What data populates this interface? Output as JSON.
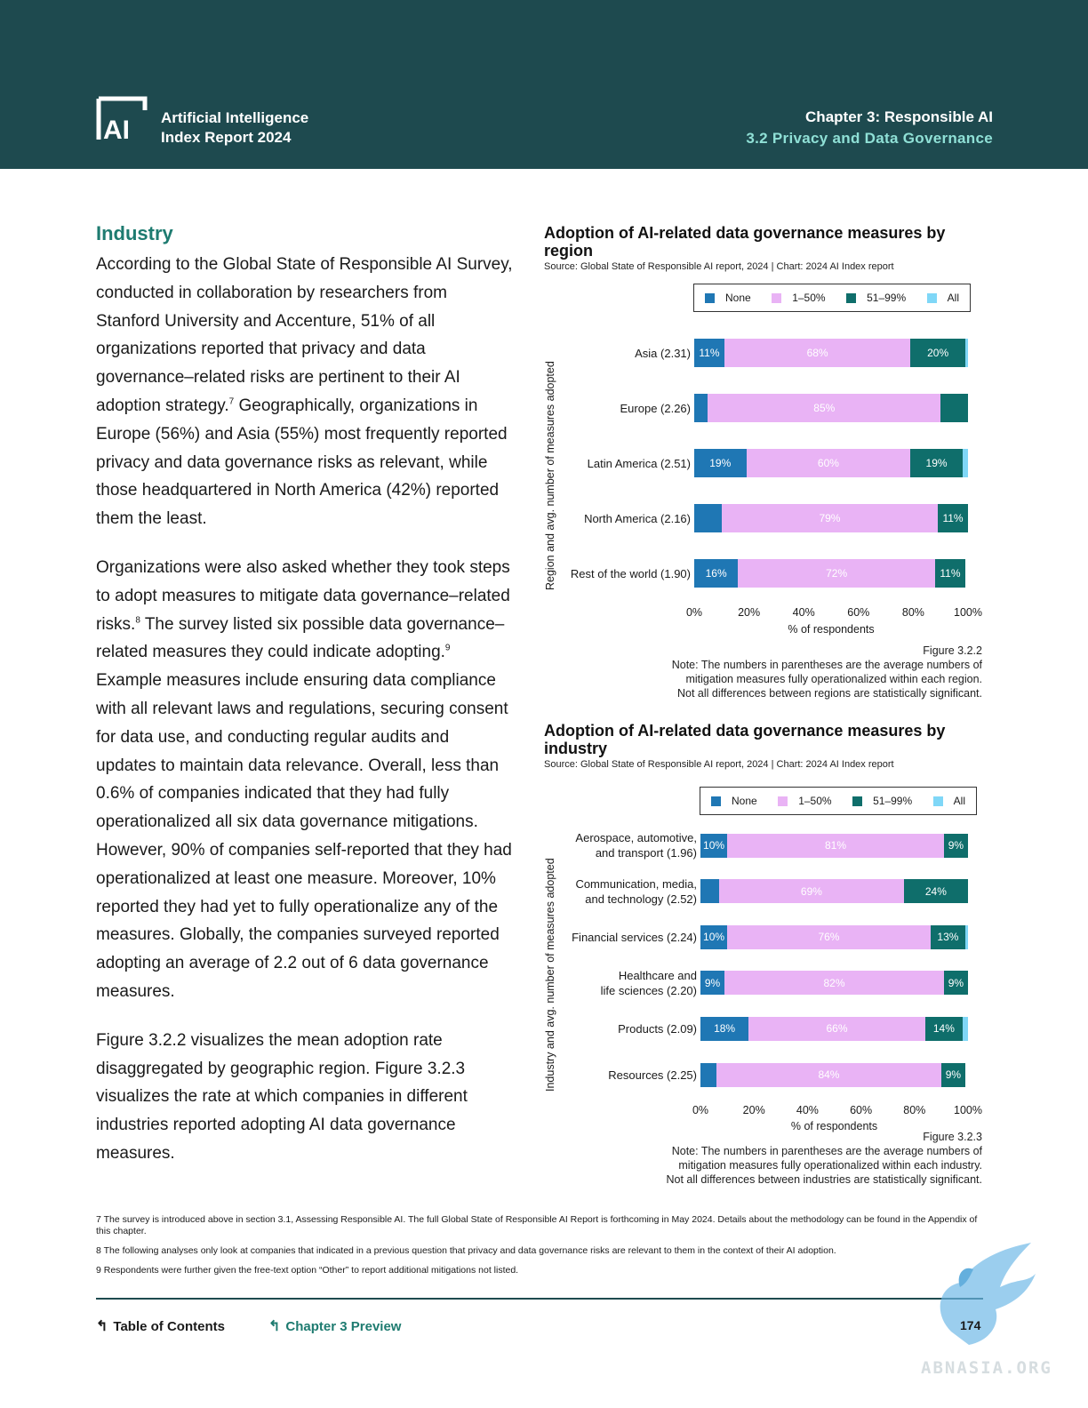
{
  "header": {
    "report_title_line1": "Artificial Intelligence",
    "report_title_line2": "Index Report 2024",
    "chapter_title": "Chapter 3: Responsible AI",
    "section_title": "3.2 Privacy and Data Governance"
  },
  "body": {
    "heading": "Industry",
    "para1_a": "According to the Global State of Responsible AI Survey, conducted in collaboration by researchers from Stanford University and Accenture, 51% of all organizations reported that privacy and data governance–related risks are pertinent to their AI adoption strategy.",
    "para1_sup": "7",
    "para1_b": " Geographically, organizations in Europe (56%) and Asia (55%) most frequently reported privacy and data governance risks as relevant, while those headquartered in North America (42%) reported them the least.",
    "para2_a": "Organizations were also asked whether they took steps to adopt measures to mitigate data governance–related risks.",
    "para2_sup1": "8",
    "para2_b": " The survey listed six possible data governance–related measures they could indicate adopting.",
    "para2_sup2": "9",
    "para2_c": " Example measures include ensuring data compliance with all relevant laws and regulations, securing consent for data use, and conducting regular audits and updates to maintain data relevance. Overall, less than 0.6% of companies indicated that they had fully operationalized all six data governance mitigations. However, 90% of companies self-reported that they had operationalized at least one measure. Moreover, 10% reported they had yet to fully operationalize any of the measures. Globally, the companies surveyed reported adopting an average of 2.2 out of 6 data governance measures.",
    "para3": "Figure 3.2.2 visualizes the mean adoption rate disaggregated by geographic region. Figure 3.2.3 visualizes the rate at which companies in different industries reported adopting AI data governance measures."
  },
  "legend": {
    "items": [
      {
        "label": "None",
        "color": "#1f77b4"
      },
      {
        "label": "1–50%",
        "color": "#e9b3f5"
      },
      {
        "label": "51–99%",
        "color": "#0f6e6b"
      },
      {
        "label": "All",
        "color": "#7fd7f7"
      }
    ]
  },
  "chart_data": [
    {
      "type": "bar",
      "orientation": "horizontal",
      "stacked": true,
      "title": "Adoption of AI-related data governance measures by region",
      "source": "Source: Global State of Responsible AI report, 2024 | Chart: 2024 AI Index report",
      "ylabel": "Region and avg. number of measures adopted",
      "xlabel": "% of respondents",
      "xlim": [
        0,
        100
      ],
      "xticks": [
        "0%",
        "20%",
        "40%",
        "60%",
        "80%",
        "100%"
      ],
      "categories": [
        "Asia (2.31)",
        "Europe (2.26)",
        "Latin America (2.51)",
        "North America (2.16)",
        "Rest of the world (1.90)"
      ],
      "series": [
        {
          "name": "None",
          "values": [
            11,
            5,
            19,
            10,
            16
          ],
          "labels": [
            "11%",
            "",
            "19%",
            "",
            "16%"
          ]
        },
        {
          "name": "1–50%",
          "values": [
            68,
            85,
            60,
            79,
            72
          ],
          "labels": [
            "68%",
            "85%",
            "60%",
            "79%",
            "72%"
          ]
        },
        {
          "name": "51–99%",
          "values": [
            20,
            10,
            19,
            11,
            11
          ],
          "labels": [
            "20%",
            "",
            "19%",
            "11%",
            "11%"
          ]
        },
        {
          "name": "All",
          "values": [
            1,
            0,
            2,
            0,
            0
          ],
          "labels": [
            "",
            "",
            "",
            "",
            ""
          ]
        }
      ],
      "figure": "Figure 3.2.2",
      "note_lines": [
        "Note: The numbers in parentheses are the average numbers of",
        "mitigation measures fully operationalized within each region.",
        "Not all differences between regions are statistically significant."
      ]
    },
    {
      "type": "bar",
      "orientation": "horizontal",
      "stacked": true,
      "title": "Adoption of AI-related data governance measures by industry",
      "source": "Source: Global State of Responsible AI report, 2024 | Chart: 2024 AI Index report",
      "ylabel": "Industry and avg. number of measures adopted",
      "xlabel": "% of respondents",
      "xlim": [
        0,
        100
      ],
      "xticks": [
        "0%",
        "20%",
        "40%",
        "60%",
        "80%",
        "100%"
      ],
      "categories": [
        "Aerospace, automotive,|and transport (1.96)",
        "Communication, media,|and technology (2.52)",
        "Financial services (2.24)",
        "Healthcare and|life sciences (2.20)",
        "Products (2.09)",
        "Resources (2.25)"
      ],
      "series": [
        {
          "name": "None",
          "values": [
            10,
            7,
            10,
            9,
            18,
            6
          ],
          "labels": [
            "10%",
            "",
            "10%",
            "9%",
            "18%",
            ""
          ]
        },
        {
          "name": "1–50%",
          "values": [
            81,
            69,
            76,
            82,
            66,
            84
          ],
          "labels": [
            "81%",
            "69%",
            "76%",
            "82%",
            "66%",
            "84%"
          ]
        },
        {
          "name": "51–99%",
          "values": [
            9,
            24,
            13,
            9,
            14,
            9
          ],
          "labels": [
            "9%",
            "24%",
            "13%",
            "9%",
            "14%",
            "9%"
          ]
        },
        {
          "name": "All",
          "values": [
            0,
            0,
            1,
            0,
            2,
            0
          ],
          "labels": [
            "",
            "",
            "",
            "",
            "",
            ""
          ]
        }
      ],
      "figure": "Figure 3.2.3",
      "note_lines": [
        "Note: The numbers in parentheses are the average numbers of",
        "mitigation measures fully operationalized within each industry.",
        "Not all differences between industries are statistically significant."
      ]
    }
  ],
  "footnotes": [
    "7 The survey is introduced above in section 3.1, Assessing Responsible AI. The full Global State of Responsible AI Report is forthcoming in May 2024. Details about the methodology can be found in the Appendix of this chapter.",
    "8 The following analyses only look at companies that indicated in a previous question that privacy and data governance risks are relevant to them in the context of their AI adoption.",
    "9 Respondents were further given the free-text option “Other” to report additional mitigations not listed."
  ],
  "footer": {
    "toc_label": "Table of Contents",
    "chapter_preview_label": "Chapter 3 Preview",
    "page_number": "174"
  },
  "watermark": {
    "text": "ABNASIA.ORG"
  }
}
